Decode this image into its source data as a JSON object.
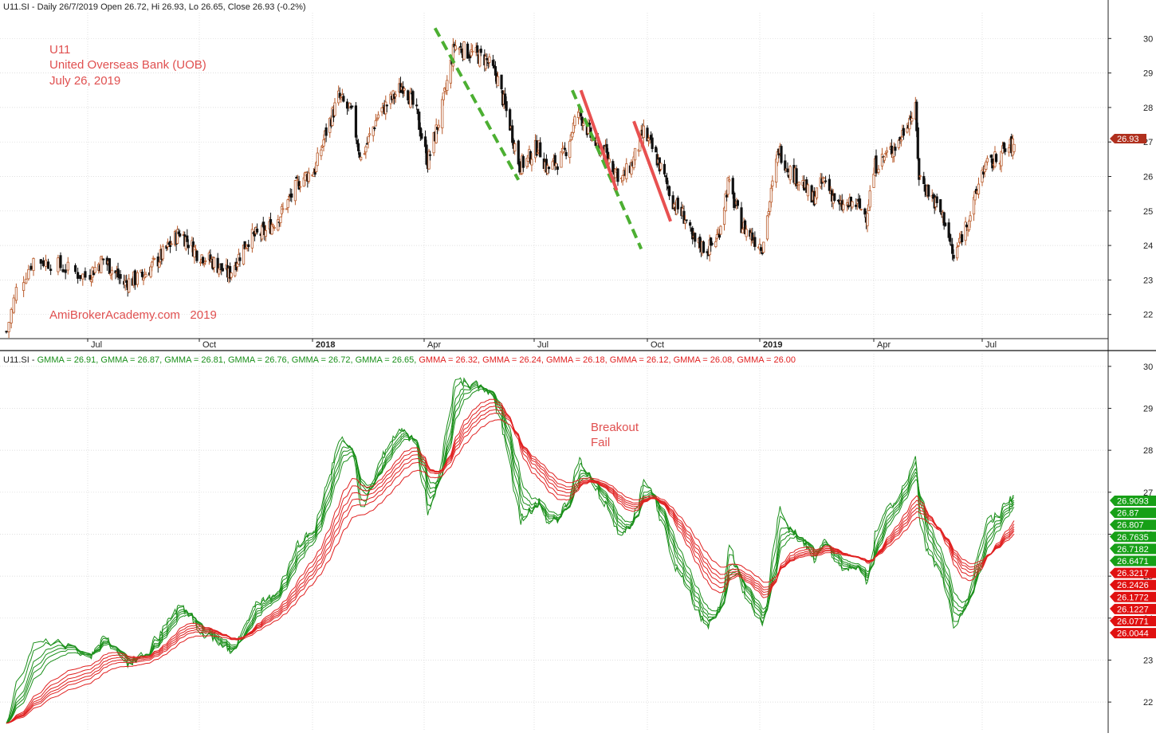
{
  "panels": {
    "price": {
      "header": "U11.SI - Daily 26/7/2019 Open 26.72, Hi 26.93, Lo 26.65, Close 26.93 (-0.2%)",
      "annotations": [
        "U11",
        "United Overseas Bank (UOB)",
        "July 26, 2019"
      ],
      "watermark": "AmiBrokerAcademy.com   2019",
      "last_price_label": "26.93",
      "y_ticks": [
        "30",
        "29",
        "28",
        "27",
        "26",
        "25",
        "24",
        "23",
        "22"
      ]
    },
    "gmma": {
      "header_prefix": "U11.SI - ",
      "header_items": [
        {
          "text": "GMMA = 26.91",
          "color": "#1a8f1a"
        },
        {
          "text": "GMMA = 26.87",
          "color": "#1a8f1a"
        },
        {
          "text": "GMMA = 26.81",
          "color": "#1a8f1a"
        },
        {
          "text": "GMMA = 26.76",
          "color": "#1a8f1a"
        },
        {
          "text": "GMMA = 26.72",
          "color": "#1a8f1a"
        },
        {
          "text": "GMMA = 26.65",
          "color": "#1a8f1a"
        },
        {
          "text": "GMMA = 26.32",
          "color": "#e02020"
        },
        {
          "text": "GMMA = 26.24",
          "color": "#e02020"
        },
        {
          "text": "GMMA = 26.18",
          "color": "#e02020"
        },
        {
          "text": "GMMA = 26.12",
          "color": "#e02020"
        },
        {
          "text": "GMMA = 26.08",
          "color": "#e02020"
        },
        {
          "text": "GMMA = 26.00",
          "color": "#e02020"
        }
      ],
      "annotation_line1": "Breakout",
      "annotation_line2": "Fail",
      "value_labels": [
        {
          "text": "26.9093",
          "color": "#17a017"
        },
        {
          "text": "26.87",
          "color": "#17a017"
        },
        {
          "text": "26.807",
          "color": "#17a017"
        },
        {
          "text": "26.7635",
          "color": "#17a017"
        },
        {
          "text": "26.7182",
          "color": "#17a017"
        },
        {
          "text": "26.6471",
          "color": "#17a017"
        },
        {
          "text": "26.3217",
          "color": "#e01010"
        },
        {
          "text": "26.2426",
          "color": "#e01010"
        },
        {
          "text": "26.1772",
          "color": "#e01010"
        },
        {
          "text": "26.1227",
          "color": "#e01010"
        },
        {
          "text": "26.0771",
          "color": "#e01010"
        },
        {
          "text": "26.0044",
          "color": "#e01010"
        }
      ],
      "y_ticks": [
        "30",
        "29",
        "28",
        "27",
        "26",
        "25",
        "24",
        "23",
        "22"
      ]
    },
    "x_labels": [
      "Jul",
      "Oct",
      "2018",
      "Apr",
      "Jul",
      "Oct",
      "2019",
      "Apr",
      "Jul"
    ]
  },
  "colors": {
    "candle_up": "#b85a2a",
    "candle_down": "#111111",
    "gmma_short": "#1a8f1a",
    "gmma_long": "#e02020",
    "trend_dashed": "#4caf32",
    "trend_solid": "#e85050",
    "last_price_box": "#b0301e"
  },
  "chart_data": [
    {
      "type": "candlestick",
      "series_name": "U11.SI",
      "x_axis": "date (2017-06 .. 2019-07-26)",
      "y_axis_range": [
        21.3,
        30.7
      ],
      "y_scale": "linear",
      "grid": true,
      "close_path": [
        [
          "2017-05-29",
          21.5
        ],
        [
          "2017-06-02",
          22.7
        ],
        [
          "2017-06-09",
          23.6
        ],
        [
          "2017-06-16",
          23.5
        ],
        [
          "2017-06-30",
          23.1
        ],
        [
          "2017-07-14",
          23.6
        ],
        [
          "2017-07-31",
          22.9
        ],
        [
          "2017-08-15",
          23.1
        ],
        [
          "2017-08-31",
          23.7
        ],
        [
          "2017-09-15",
          24.4
        ],
        [
          "2017-09-29",
          23.8
        ],
        [
          "2017-10-13",
          23.5
        ],
        [
          "2017-10-25",
          23.15
        ],
        [
          "2017-11-10",
          24.2
        ],
        [
          "2017-11-24",
          24.4
        ],
        [
          "2017-12-08",
          25.0
        ],
        [
          "2017-12-22",
          25.9
        ],
        [
          "2018-01-03",
          26.2
        ],
        [
          "2018-01-12",
          27.3
        ],
        [
          "2018-01-22",
          28.3
        ],
        [
          "2018-02-02",
          27.8
        ],
        [
          "2018-02-09",
          26.5
        ],
        [
          "2018-02-23",
          27.8
        ],
        [
          "2018-03-05",
          28.2
        ],
        [
          "2018-03-16",
          28.7
        ],
        [
          "2018-03-26",
          27.8
        ],
        [
          "2018-04-04",
          26.4
        ],
        [
          "2018-04-16",
          28.0
        ],
        [
          "2018-04-26",
          29.8
        ],
        [
          "2018-05-08",
          29.6
        ],
        [
          "2018-05-22",
          29.4
        ],
        [
          "2018-05-31",
          28.9
        ],
        [
          "2018-06-11",
          27.5
        ],
        [
          "2018-06-19",
          26.3
        ],
        [
          "2018-06-26",
          26.5
        ],
        [
          "2018-07-04",
          26.9
        ],
        [
          "2018-07-12",
          26.2
        ],
        [
          "2018-07-25",
          26.6
        ],
        [
          "2018-08-06",
          27.9
        ],
        [
          "2018-08-17",
          27.1
        ],
        [
          "2018-08-29",
          26.6
        ],
        [
          "2018-09-10",
          25.9
        ],
        [
          "2018-09-19",
          26.4
        ],
        [
          "2018-09-28",
          27.3
        ],
        [
          "2018-10-09",
          26.5
        ],
        [
          "2018-10-23",
          25.2
        ],
        [
          "2018-11-01",
          24.8
        ],
        [
          "2018-11-07",
          24.1
        ],
        [
          "2018-11-20",
          23.9
        ],
        [
          "2018-11-28",
          24.3
        ],
        [
          "2018-12-06",
          25.8
        ],
        [
          "2018-12-17",
          24.6
        ],
        [
          "2018-12-27",
          24.2
        ],
        [
          "2019-01-03",
          24.0
        ],
        [
          "2019-01-10",
          25.5
        ],
        [
          "2019-01-16",
          26.8
        ],
        [
          "2019-01-24",
          26.2
        ],
        [
          "2019-02-04",
          25.8
        ],
        [
          "2019-02-11",
          25.3
        ],
        [
          "2019-02-21",
          25.9
        ],
        [
          "2019-03-05",
          25.1
        ],
        [
          "2019-03-18",
          25.2
        ],
        [
          "2019-03-26",
          24.9
        ],
        [
          "2019-04-02",
          26.3
        ],
        [
          "2019-04-11",
          26.6
        ],
        [
          "2019-04-22",
          27.0
        ],
        [
          "2019-04-29",
          27.6
        ],
        [
          "2019-05-06",
          27.9
        ],
        [
          "2019-05-09",
          26.0
        ],
        [
          "2019-05-20",
          25.4
        ],
        [
          "2019-05-31",
          24.7
        ],
        [
          "2019-06-07",
          23.6
        ],
        [
          "2019-06-14",
          24.3
        ],
        [
          "2019-06-24",
          25.2
        ],
        [
          "2019-07-01",
          26.2
        ],
        [
          "2019-07-09",
          26.4
        ],
        [
          "2019-07-17",
          26.7
        ],
        [
          "2019-07-26",
          26.93
        ]
      ],
      "ohlc_2019_07_26": {
        "open": 26.72,
        "high": 26.93,
        "low": 26.65,
        "close": 26.93,
        "change_pct": -0.2
      },
      "trend_lines": [
        {
          "style": "dashed",
          "color": "green",
          "from": [
            "2018-04-10",
            30.3
          ],
          "to": [
            "2018-06-18",
            25.9
          ]
        },
        {
          "style": "dashed",
          "color": "green",
          "from": [
            "2018-08-01",
            28.5
          ],
          "to": [
            "2018-09-26",
            23.9
          ]
        },
        {
          "style": "solid",
          "color": "red",
          "from": [
            "2018-08-08",
            28.5
          ],
          "to": [
            "2018-09-06",
            25.6
          ]
        },
        {
          "style": "solid",
          "color": "red",
          "from": [
            "2018-09-20",
            27.6
          ],
          "to": [
            "2018-10-20",
            24.7
          ]
        }
      ]
    },
    {
      "type": "line",
      "title": "GMMA",
      "y_axis_range": [
        21.3,
        30.3
      ],
      "y_scale": "linear",
      "grid": true,
      "series": [
        {
          "name": "GMMA",
          "color": "green",
          "last": 26.9093
        },
        {
          "name": "GMMA",
          "color": "green",
          "last": 26.87
        },
        {
          "name": "GMMA",
          "color": "green",
          "last": 26.807
        },
        {
          "name": "GMMA",
          "color": "green",
          "last": 26.7635
        },
        {
          "name": "GMMA",
          "color": "green",
          "last": 26.7182
        },
        {
          "name": "GMMA",
          "color": "green",
          "last": 26.6471
        },
        {
          "name": "GMMA",
          "color": "red",
          "last": 26.3217
        },
        {
          "name": "GMMA",
          "color": "red",
          "last": 26.2426
        },
        {
          "name": "GMMA",
          "color": "red",
          "last": 26.1772
        },
        {
          "name": "GMMA",
          "color": "red",
          "last": 26.1227
        },
        {
          "name": "GMMA",
          "color": "red",
          "last": 26.0771
        },
        {
          "name": "GMMA",
          "color": "red",
          "last": 26.0044
        }
      ]
    }
  ]
}
